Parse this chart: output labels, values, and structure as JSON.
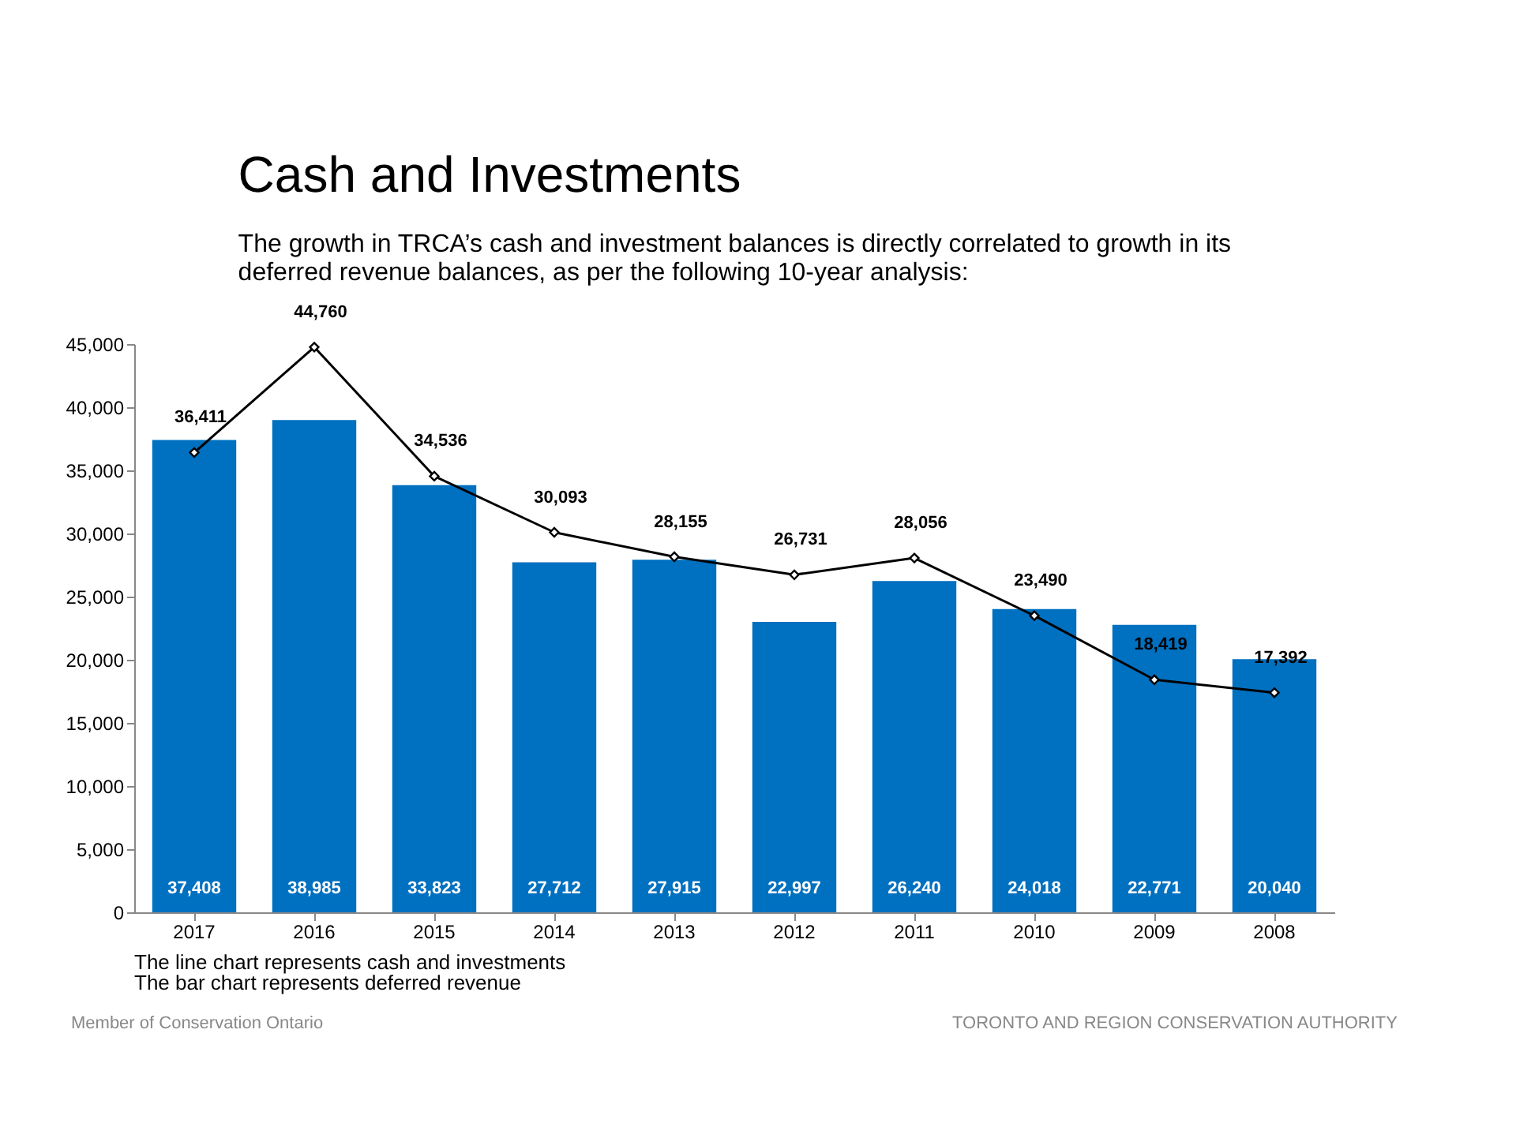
{
  "chart_data": {
    "type": "bar",
    "title": "Cash and Investments",
    "subtitle": "The growth in TRCA’s cash and investment balances is directly correlated to growth in its deferred revenue balances, as per the following 10-year analysis:",
    "categories": [
      "2017",
      "2016",
      "2015",
      "2014",
      "2013",
      "2012",
      "2011",
      "2010",
      "2009",
      "2008"
    ],
    "series": [
      {
        "color": "#0070c0",
        "values": [
          37408,
          38985,
          33823,
          27712,
          27915,
          22997,
          26240,
          24018,
          22771,
          20040
        ],
        "value_labels": [
          "37,408",
          "38,985",
          "33,823",
          "27,712",
          "27,915",
          "22,997",
          "26,240",
          "24,018",
          "22,771",
          "20,040"
        ]
      },
      {
        "type": "line",
        "color": "#000000",
        "marker": "diamond",
        "line_style": "solid",
        "values": [
          36411,
          44760,
          34536,
          30093,
          28155,
          26731,
          28056,
          23490,
          18419,
          17392
        ],
        "value_labels": [
          "36,411",
          "44,760",
          "34,536",
          "30,093",
          "28,155",
          "26,731",
          "28,056",
          "23,490",
          "18,419",
          "17,392"
        ]
      }
    ],
    "ylim": [
      0,
      45000
    ],
    "yticks": [
      0,
      {
        "value": 5000,
        "label": "5,000"
      },
      {
        "value": 10000,
        "label": "10,000"
      },
      {
        "value": 15000,
        "label": "15,000"
      },
      {
        "value": 20000,
        "label": "20,000"
      },
      {
        "value": 25000,
        "label": "25,000"
      },
      {
        "value": 30000,
        "label": "30,000"
      },
      {
        "value": 35000,
        "label": "35,000"
      },
      {
        "value": 40000,
        "label": "40,000"
      },
      {
        "value": 45000,
        "label": "45,000"
      }
    ],
    "grid": false,
    "legend": false,
    "annotations": [
      "The line chart represents cash and investments",
      "The bar chart represents deferred revenue",
      "Member of Conservation Ontario",
      "TORONTO AND REGION CONSERVATION AUTHORITY"
    ]
  }
}
